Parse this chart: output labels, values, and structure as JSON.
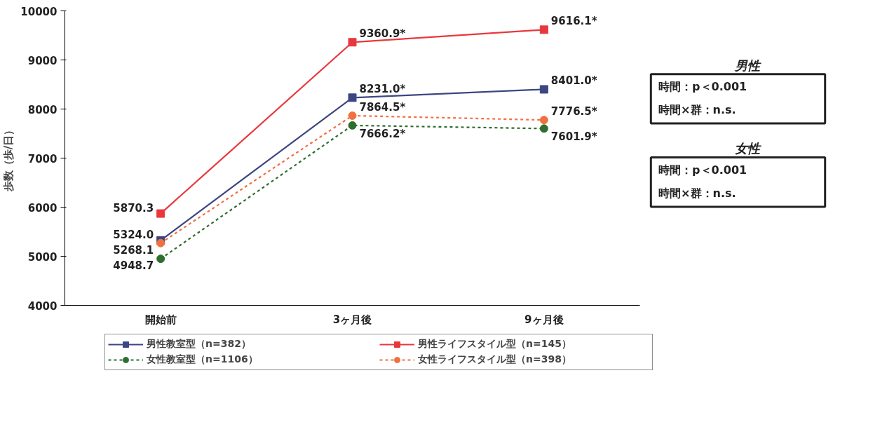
{
  "chart_data": {
    "type": "line",
    "ylabel": "歩数（歩/日）",
    "categories": [
      "開始前",
      "3ヶ月後",
      "9ヶ月後"
    ],
    "series": [
      {
        "name": "男性教室型（n=382）",
        "color": "#3c4681",
        "values": [
          5324.0,
          8231.0,
          8401.0
        ],
        "value_labels": [
          "5324.0",
          "8231.0*",
          "8401.0*"
        ],
        "marker": "square",
        "line_style": "solid"
      },
      {
        "name": "男性ライフスタイル型（n=145）",
        "color": "#e8383d",
        "values": [
          5870.3,
          9360.9,
          9616.1
        ],
        "value_labels": [
          "5870.3",
          "9360.9*",
          "9616.1*"
        ],
        "marker": "square",
        "line_style": "solid"
      },
      {
        "name": "女性教室型（n=1106）",
        "color": "#2e6e2e",
        "values": [
          4948.7,
          7666.2,
          7601.9
        ],
        "value_labels": [
          "4948.7",
          "7666.2*",
          "7601.9*"
        ],
        "marker": "circle",
        "line_style": "dotted"
      },
      {
        "name": "女性ライフスタイル型（n=398）",
        "color": "#f07040",
        "values": [
          5268.1,
          7864.5,
          7776.5
        ],
        "value_labels": [
          "5268.1",
          "7864.5*",
          "7776.5*"
        ],
        "marker": "circle",
        "line_style": "dotted"
      }
    ],
    "ylim": [
      4000,
      10000
    ],
    "yticks": [
      4000,
      5000,
      6000,
      7000,
      8000,
      9000,
      10000
    ],
    "grid": false,
    "legend": "bottom",
    "annotations": [
      "男性",
      "時間：p＜0.001",
      "時間×群：n.s.",
      "女性",
      "時間：p＜0.001",
      "時間×群：n.s."
    ]
  }
}
